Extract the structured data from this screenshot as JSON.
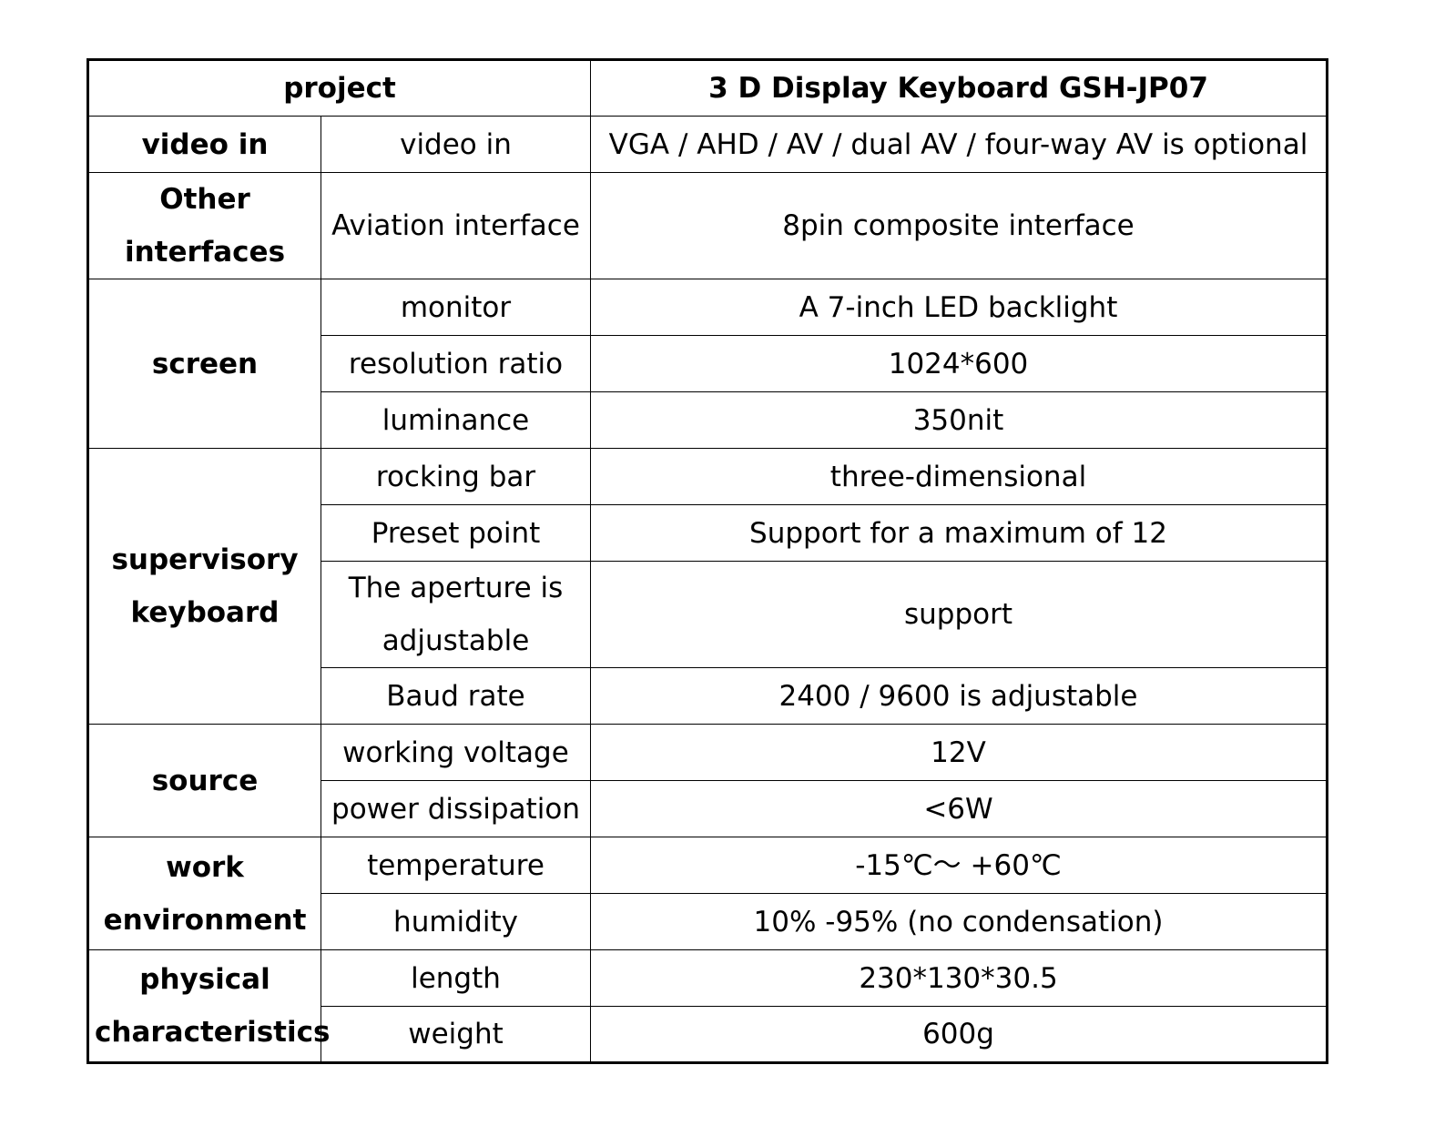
{
  "header": {
    "project": "project",
    "product": "3 D Display Keyboard GSH-JP07"
  },
  "groups": [
    {
      "name": "video in",
      "rows": [
        {
          "param": "video in",
          "value": "VGA / AHD / AV / dual AV / four-way AV is optional"
        }
      ]
    },
    {
      "name": "Other interfaces",
      "rows": [
        {
          "param": "Aviation interface",
          "value": "8pin composite interface"
        }
      ]
    },
    {
      "name": "screen",
      "rows": [
        {
          "param": "monitor",
          "value": "A 7-inch LED backlight"
        },
        {
          "param": "resolution ratio",
          "value": "1024*600"
        },
        {
          "param": "luminance",
          "value": "350nit"
        }
      ]
    },
    {
      "name": "supervisory keyboard",
      "rows": [
        {
          "param": "rocking bar",
          "value": "three-dimensional"
        },
        {
          "param": "Preset point",
          "value": "Support for a maximum of 12"
        },
        {
          "param": "The aperture is adjustable",
          "value": "support"
        },
        {
          "param": "Baud rate",
          "value": "2400 / 9600 is adjustable"
        }
      ]
    },
    {
      "name": "source",
      "rows": [
        {
          "param": "working voltage",
          "value": "12V"
        },
        {
          "param": "power dissipation",
          "value": "<6W"
        }
      ]
    },
    {
      "name": "work environment",
      "rows": [
        {
          "param": "temperature",
          "value": "-15℃～ +60℃"
        },
        {
          "param": "humidity",
          "value": "10% -95% (no condensation)"
        }
      ]
    },
    {
      "name": "physical characteristics",
      "rows": [
        {
          "param": "length",
          "value": "230*130*30.5"
        },
        {
          "param": "weight",
          "value": "600g"
        }
      ]
    }
  ]
}
